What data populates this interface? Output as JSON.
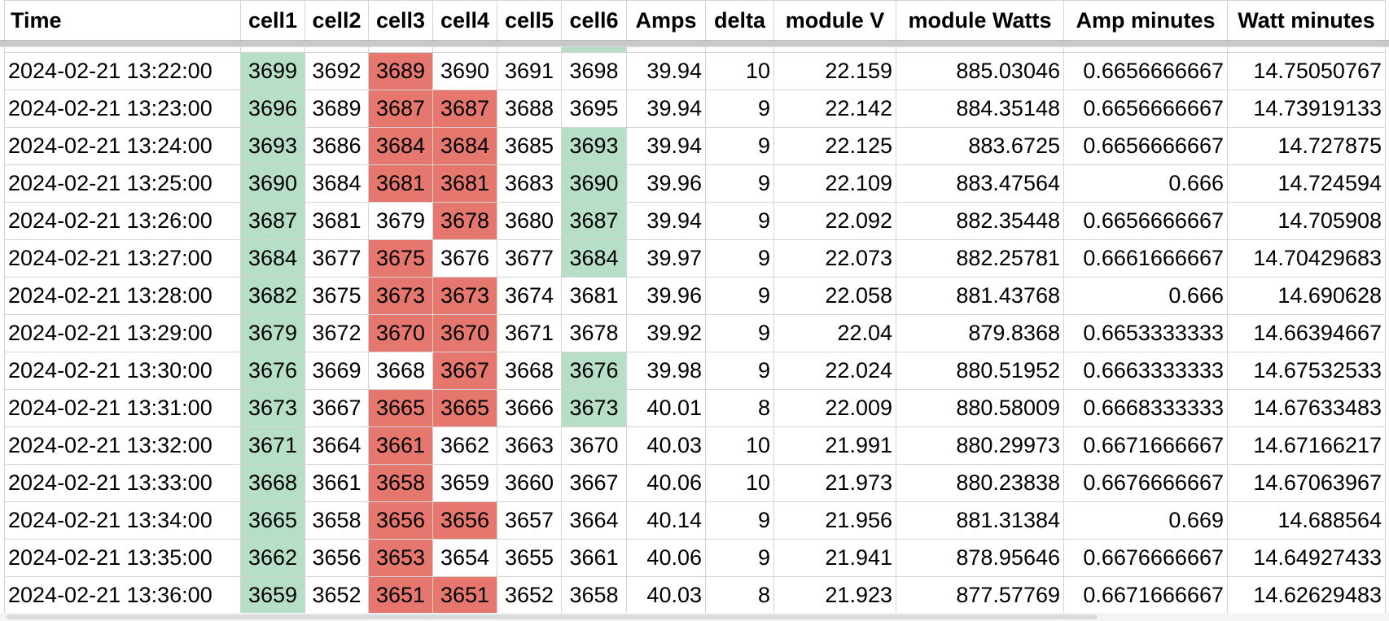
{
  "colors": {
    "high": "#b7dfc7",
    "low": "#e5776e",
    "gridline": "#d4d4d4"
  },
  "columns": [
    "Time",
    "cell1",
    "cell2",
    "cell3",
    "cell4",
    "cell5",
    "cell6",
    "Amps",
    "delta",
    "module V",
    "module Watts",
    "Amp minutes",
    "Watt minutes"
  ],
  "rows": [
    {
      "cells": [
        "2024-02-21 13:22:00",
        "3699",
        "3692",
        "3689",
        "3690",
        "3691",
        "3698",
        "39.94",
        "10",
        "22.159",
        "885.03046",
        "0.6656666667",
        "14.75050767"
      ],
      "hl": [
        "",
        "high",
        "",
        "low",
        "",
        "",
        "",
        "",
        "",
        "",
        "",
        "",
        ""
      ]
    },
    {
      "cells": [
        "2024-02-21 13:23:00",
        "3696",
        "3689",
        "3687",
        "3687",
        "3688",
        "3695",
        "39.94",
        "9",
        "22.142",
        "884.35148",
        "0.6656666667",
        "14.73919133"
      ],
      "hl": [
        "",
        "high",
        "",
        "low",
        "low",
        "",
        "",
        "",
        "",
        "",
        "",
        "",
        ""
      ]
    },
    {
      "cells": [
        "2024-02-21 13:24:00",
        "3693",
        "3686",
        "3684",
        "3684",
        "3685",
        "3693",
        "39.94",
        "9",
        "22.125",
        "883.6725",
        "0.6656666667",
        "14.727875"
      ],
      "hl": [
        "",
        "high",
        "",
        "low",
        "low",
        "",
        "high",
        "",
        "",
        "",
        "",
        "",
        ""
      ]
    },
    {
      "cells": [
        "2024-02-21 13:25:00",
        "3690",
        "3684",
        "3681",
        "3681",
        "3683",
        "3690",
        "39.96",
        "9",
        "22.109",
        "883.47564",
        "0.666",
        "14.724594"
      ],
      "hl": [
        "",
        "high",
        "",
        "low",
        "low",
        "",
        "high",
        "",
        "",
        "",
        "",
        "",
        ""
      ]
    },
    {
      "cells": [
        "2024-02-21 13:26:00",
        "3687",
        "3681",
        "3679",
        "3678",
        "3680",
        "3687",
        "39.94",
        "9",
        "22.092",
        "882.35448",
        "0.6656666667",
        "14.705908"
      ],
      "hl": [
        "",
        "high",
        "",
        "",
        "low",
        "",
        "high",
        "",
        "",
        "",
        "",
        "",
        ""
      ]
    },
    {
      "cells": [
        "2024-02-21 13:27:00",
        "3684",
        "3677",
        "3675",
        "3676",
        "3677",
        "3684",
        "39.97",
        "9",
        "22.073",
        "882.25781",
        "0.6661666667",
        "14.70429683"
      ],
      "hl": [
        "",
        "high",
        "",
        "low",
        "",
        "",
        "high",
        "",
        "",
        "",
        "",
        "",
        ""
      ]
    },
    {
      "cells": [
        "2024-02-21 13:28:00",
        "3682",
        "3675",
        "3673",
        "3673",
        "3674",
        "3681",
        "39.96",
        "9",
        "22.058",
        "881.43768",
        "0.666",
        "14.690628"
      ],
      "hl": [
        "",
        "high",
        "",
        "low",
        "low",
        "",
        "",
        "",
        "",
        "",
        "",
        "",
        ""
      ]
    },
    {
      "cells": [
        "2024-02-21 13:29:00",
        "3679",
        "3672",
        "3670",
        "3670",
        "3671",
        "3678",
        "39.92",
        "9",
        "22.04",
        "879.8368",
        "0.6653333333",
        "14.66394667"
      ],
      "hl": [
        "",
        "high",
        "",
        "low",
        "low",
        "",
        "",
        "",
        "",
        "",
        "",
        "",
        ""
      ]
    },
    {
      "cells": [
        "2024-02-21 13:30:00",
        "3676",
        "3669",
        "3668",
        "3667",
        "3668",
        "3676",
        "39.98",
        "9",
        "22.024",
        "880.51952",
        "0.6663333333",
        "14.67532533"
      ],
      "hl": [
        "",
        "high",
        "",
        "",
        "low",
        "",
        "high",
        "",
        "",
        "",
        "",
        "",
        ""
      ]
    },
    {
      "cells": [
        "2024-02-21 13:31:00",
        "3673",
        "3667",
        "3665",
        "3665",
        "3666",
        "3673",
        "40.01",
        "8",
        "22.009",
        "880.58009",
        "0.6668333333",
        "14.67633483"
      ],
      "hl": [
        "",
        "high",
        "",
        "low",
        "low",
        "",
        "high",
        "",
        "",
        "",
        "",
        "",
        ""
      ]
    },
    {
      "cells": [
        "2024-02-21 13:32:00",
        "3671",
        "3664",
        "3661",
        "3662",
        "3663",
        "3670",
        "40.03",
        "10",
        "21.991",
        "880.29973",
        "0.6671666667",
        "14.67166217"
      ],
      "hl": [
        "",
        "high",
        "",
        "low",
        "",
        "",
        "",
        "",
        "",
        "",
        "",
        "",
        ""
      ]
    },
    {
      "cells": [
        "2024-02-21 13:33:00",
        "3668",
        "3661",
        "3658",
        "3659",
        "3660",
        "3667",
        "40.06",
        "10",
        "21.973",
        "880.23838",
        "0.6676666667",
        "14.67063967"
      ],
      "hl": [
        "",
        "high",
        "",
        "low",
        "",
        "",
        "",
        "",
        "",
        "",
        "",
        "",
        ""
      ]
    },
    {
      "cells": [
        "2024-02-21 13:34:00",
        "3665",
        "3658",
        "3656",
        "3656",
        "3657",
        "3664",
        "40.14",
        "9",
        "21.956",
        "881.31384",
        "0.669",
        "14.688564"
      ],
      "hl": [
        "",
        "high",
        "",
        "low",
        "low",
        "",
        "",
        "",
        "",
        "",
        "",
        "",
        ""
      ]
    },
    {
      "cells": [
        "2024-02-21 13:35:00",
        "3662",
        "3656",
        "3653",
        "3654",
        "3655",
        "3661",
        "40.06",
        "9",
        "21.941",
        "878.95646",
        "0.6676666667",
        "14.64927433"
      ],
      "hl": [
        "",
        "high",
        "",
        "low",
        "",
        "",
        "",
        "",
        "",
        "",
        "",
        "",
        ""
      ]
    },
    {
      "cells": [
        "2024-02-21 13:36:00",
        "3659",
        "3652",
        "3651",
        "3651",
        "3652",
        "3658",
        "40.03",
        "8",
        "21.923",
        "877.57769",
        "0.6671666667",
        "14.62629483"
      ],
      "hl": [
        "",
        "high",
        "",
        "low",
        "low",
        "",
        "",
        "",
        "",
        "",
        "",
        "",
        ""
      ]
    }
  ]
}
